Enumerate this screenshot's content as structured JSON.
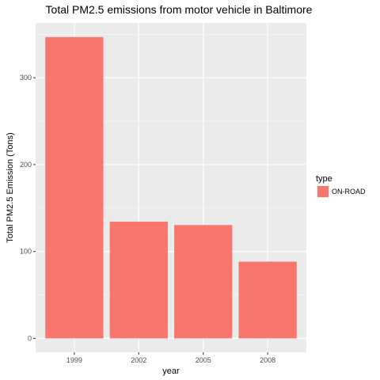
{
  "chart_data": {
    "type": "bar",
    "title": "Total PM2.5 emissions from motor vehicle in Baltimore",
    "xlabel": "year",
    "ylabel": "Total PM2.5 Emission (Tons)",
    "categories": [
      "1999",
      "2002",
      "2005",
      "2008"
    ],
    "series": [
      {
        "name": "ON-ROAD",
        "values": [
          346.8,
          134.3,
          130.4,
          88.3
        ]
      }
    ],
    "ylim": [
      -16,
      363
    ],
    "yticks": [
      0,
      100,
      200,
      300
    ],
    "ytick_labels": [
      "0",
      "100",
      "200",
      "300"
    ],
    "grid": true,
    "legend": {
      "title": "type",
      "position": "right"
    },
    "colors": {
      "bar": "#f8766d",
      "panel": "#ebebeb",
      "grid_major": "#ffffff"
    }
  }
}
